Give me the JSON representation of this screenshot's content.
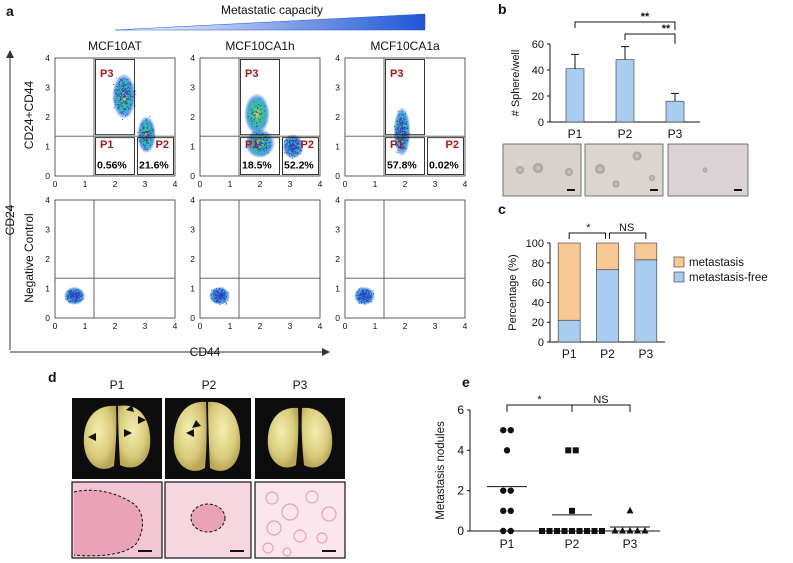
{
  "panels": {
    "a": "a",
    "b": "b",
    "c": "c",
    "d": "d",
    "e": "e"
  },
  "flow": {
    "gradient_label": "Metastatic capacity",
    "y_outer_label": "CD24",
    "x_label": "CD44",
    "row_labels": [
      "CD24+CD44",
      "Negative Control"
    ],
    "axis_ticks": [
      "0",
      "1",
      "2",
      "3",
      "4"
    ],
    "lines": [
      {
        "title": "MCF10AT",
        "p1": "0.56%",
        "p2": "21.6%"
      },
      {
        "title": "MCF10CA1h",
        "p1": "18.5%",
        "p2": "52.2%"
      },
      {
        "title": "MCF10CA1a",
        "p1": "57.8%",
        "p2": "0.02%"
      }
    ],
    "gate_names": {
      "p1": "P1",
      "p2": "P2",
      "p3": "P3"
    },
    "colors": {
      "cells_low": "#2b3fd8",
      "cells_mid": "#22c46a",
      "cells_high": "#e0d12a",
      "gate_name": "#b01515"
    }
  },
  "sphere_images": [
    "P1",
    "P2",
    "P3"
  ],
  "lung_images": {
    "labels": [
      "P1",
      "P2",
      "P3"
    ]
  },
  "chart_data": [
    {
      "id": "b",
      "type": "bar",
      "ylabel": "# Sphere/well",
      "categories": [
        "P1",
        "P2",
        "P3"
      ],
      "values": [
        41,
        48,
        16
      ],
      "errors": [
        11,
        10,
        6
      ],
      "ylim": [
        0,
        60
      ],
      "yticks": [
        "0",
        "20",
        "40",
        "60"
      ],
      "bar_color": "#a8cdf0",
      "significance": [
        "**",
        "**"
      ]
    },
    {
      "id": "c",
      "type": "bar",
      "stacked": true,
      "ylabel": "Percentage (%)",
      "categories": [
        "P1",
        "P2",
        "P3"
      ],
      "ylim": [
        0,
        100
      ],
      "yticks": [
        "0",
        "20",
        "40",
        "60",
        "80",
        "100"
      ],
      "series": [
        {
          "name": "metastasis-free",
          "values": [
            22,
            73,
            83
          ],
          "color": "#a8cdf0"
        },
        {
          "name": "metastasis",
          "values": [
            78,
            27,
            17
          ],
          "color": "#f8c995"
        }
      ],
      "significance": [
        "*",
        "NS"
      ],
      "legend": "right"
    },
    {
      "id": "e",
      "type": "scatter",
      "ylabel": "Metastasis nodules",
      "categories": [
        "P1",
        "P2",
        "P3"
      ],
      "ylim": [
        0,
        6
      ],
      "yticks": [
        "0",
        "2",
        "4",
        "6"
      ],
      "groups": [
        {
          "name": "P1",
          "marker": "circle",
          "values": [
            5,
            5,
            4,
            2,
            2,
            1,
            1,
            0,
            0
          ],
          "mean": 2.2
        },
        {
          "name": "P2",
          "marker": "square",
          "values": [
            4,
            4,
            1,
            0,
            0,
            0,
            0,
            0,
            0,
            0,
            0,
            0
          ],
          "mean": 0.8
        },
        {
          "name": "P3",
          "marker": "triangle",
          "values": [
            1,
            0,
            0,
            0,
            0,
            0
          ],
          "mean": 0.2
        }
      ],
      "significance": [
        "*",
        "NS"
      ]
    }
  ]
}
